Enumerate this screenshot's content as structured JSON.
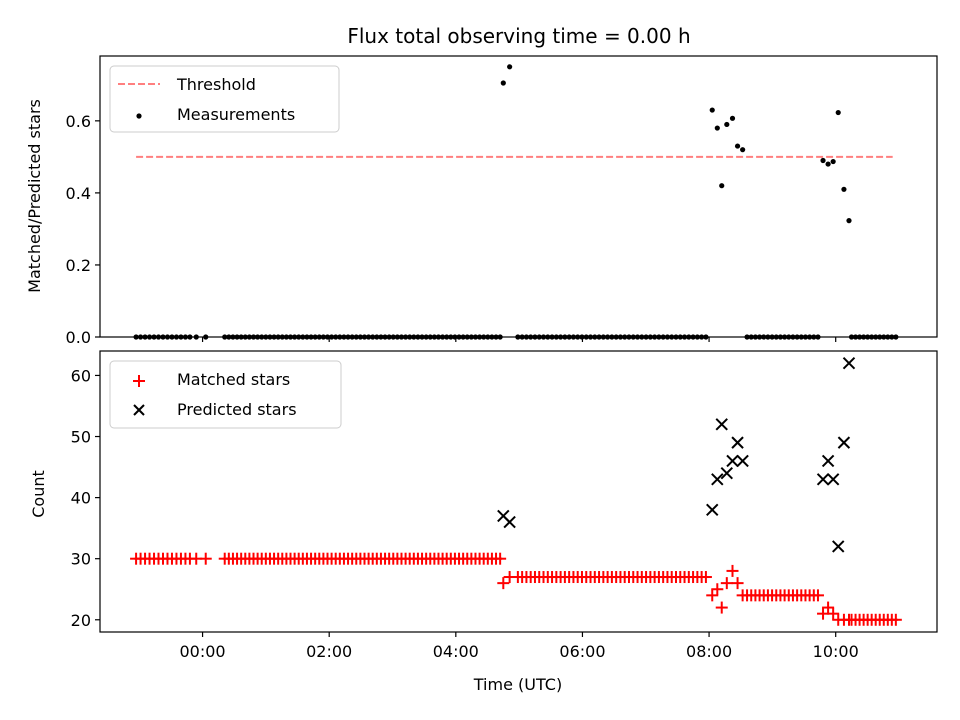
{
  "title": "Flux total observing time = 0.00 h",
  "colors": {
    "threshold": "#ff7f7f",
    "measurements": "#000000",
    "matched": "#ff0000",
    "predicted": "#000000"
  },
  "chart_data": [
    {
      "type": "scatter",
      "panel": "top",
      "ylabel": "Matched/Predicted stars",
      "xlabel": "",
      "xlim": [
        -1.62,
        11.6
      ],
      "ylim": [
        0,
        0.78
      ],
      "y_ticks": [
        "0.0",
        "0.2",
        "0.4",
        "0.6"
      ],
      "x_ticks": [
        "00:00",
        "02:00",
        "04:00",
        "06:00",
        "08:00",
        "10:00"
      ],
      "grid": false,
      "legend": {
        "position": "top-left",
        "entries": [
          "Threshold",
          "Measurements"
        ]
      },
      "threshold": {
        "name": "Threshold",
        "y": 0.5,
        "x_range": [
          -1.05,
          10.9
        ]
      },
      "measurements_zero_segments": [
        {
          "from": -1.05,
          "to": -0.2,
          "count": 13
        },
        {
          "from": -0.1,
          "to": 0.05,
          "count": 2
        },
        {
          "from": 0.35,
          "to": 4.7,
          "count": 68
        },
        {
          "from": 4.98,
          "to": 7.95,
          "count": 45
        },
        {
          "from": 8.6,
          "to": 9.72,
          "count": 18
        },
        {
          "from": 10.25,
          "to": 10.95,
          "count": 12
        }
      ],
      "measurements_points": [
        {
          "x": 4.75,
          "y": 0.705
        },
        {
          "x": 4.85,
          "y": 0.75
        },
        {
          "x": 8.05,
          "y": 0.63
        },
        {
          "x": 8.13,
          "y": 0.58
        },
        {
          "x": 8.2,
          "y": 0.42
        },
        {
          "x": 8.28,
          "y": 0.59
        },
        {
          "x": 8.37,
          "y": 0.607
        },
        {
          "x": 8.45,
          "y": 0.53
        },
        {
          "x": 8.53,
          "y": 0.52
        },
        {
          "x": 9.8,
          "y": 0.49
        },
        {
          "x": 9.88,
          "y": 0.48
        },
        {
          "x": 9.96,
          "y": 0.487
        },
        {
          "x": 10.04,
          "y": 0.623
        },
        {
          "x": 10.13,
          "y": 0.41
        },
        {
          "x": 10.21,
          "y": 0.323
        }
      ]
    },
    {
      "type": "scatter",
      "panel": "bottom",
      "xlabel": "Time (UTC)",
      "ylabel": "Count",
      "xlim": [
        -1.62,
        11.6
      ],
      "ylim": [
        18,
        64
      ],
      "y_ticks": [
        "20",
        "30",
        "40",
        "50",
        "60"
      ],
      "x_ticks": [
        "00:00",
        "02:00",
        "04:00",
        "06:00",
        "08:00",
        "10:00"
      ],
      "grid": false,
      "legend": {
        "position": "top-left",
        "entries": [
          "Matched stars",
          "Predicted stars"
        ]
      },
      "matched_segments": [
        {
          "from": -1.05,
          "to": -0.2,
          "count": 13,
          "y": 30
        },
        {
          "from": -0.1,
          "to": 0.05,
          "count": 2,
          "y": 30
        },
        {
          "from": 0.35,
          "to": 4.7,
          "count": 68,
          "y": 30
        },
        {
          "from": 4.98,
          "to": 7.95,
          "count": 45,
          "y": 27
        },
        {
          "from": 8.6,
          "to": 9.72,
          "count": 18,
          "y": 24
        },
        {
          "from": 10.25,
          "to": 10.95,
          "count": 12,
          "y": 20
        }
      ],
      "matched_points": [
        {
          "x": 4.75,
          "y": 26
        },
        {
          "x": 4.85,
          "y": 27
        },
        {
          "x": 8.05,
          "y": 24
        },
        {
          "x": 8.13,
          "y": 25
        },
        {
          "x": 8.2,
          "y": 22
        },
        {
          "x": 8.28,
          "y": 26
        },
        {
          "x": 8.37,
          "y": 28
        },
        {
          "x": 8.45,
          "y": 26
        },
        {
          "x": 8.53,
          "y": 24
        },
        {
          "x": 9.8,
          "y": 21
        },
        {
          "x": 9.88,
          "y": 22
        },
        {
          "x": 9.96,
          "y": 21
        },
        {
          "x": 10.04,
          "y": 20
        },
        {
          "x": 10.13,
          "y": 20
        },
        {
          "x": 10.21,
          "y": 20
        }
      ],
      "predicted_points": [
        {
          "x": 4.75,
          "y": 37
        },
        {
          "x": 4.85,
          "y": 36
        },
        {
          "x": 8.05,
          "y": 38
        },
        {
          "x": 8.13,
          "y": 43
        },
        {
          "x": 8.2,
          "y": 52
        },
        {
          "x": 8.28,
          "y": 44
        },
        {
          "x": 8.37,
          "y": 46
        },
        {
          "x": 8.45,
          "y": 49
        },
        {
          "x": 8.53,
          "y": 46
        },
        {
          "x": 9.8,
          "y": 43
        },
        {
          "x": 9.88,
          "y": 46
        },
        {
          "x": 9.96,
          "y": 43
        },
        {
          "x": 10.04,
          "y": 32
        },
        {
          "x": 10.13,
          "y": 49
        },
        {
          "x": 10.21,
          "y": 62
        }
      ]
    }
  ]
}
